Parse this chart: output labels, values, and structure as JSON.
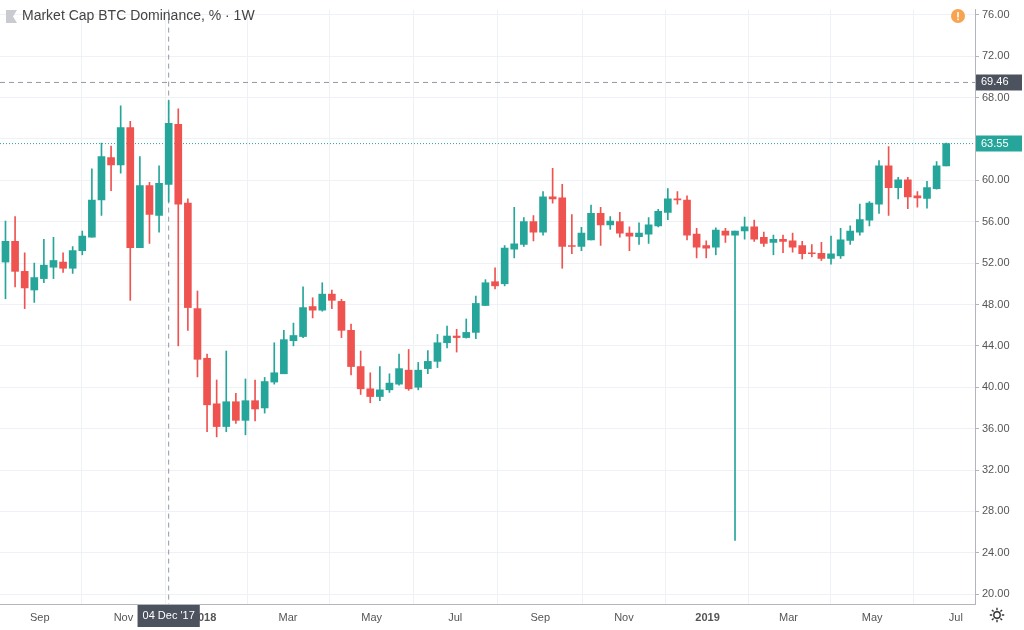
{
  "chart_data": {
    "type": "candlestick",
    "title": "Market Cap BTC Dominance, % · 1W",
    "x": [
      "2017-08-07",
      "2017-08-14",
      "2017-08-21",
      "2017-08-28",
      "2017-09-04",
      "2017-09-11",
      "2017-09-18",
      "2017-09-25",
      "2017-10-02",
      "2017-10-09",
      "2017-10-16",
      "2017-10-23",
      "2017-10-30",
      "2017-11-06",
      "2017-11-13",
      "2017-11-20",
      "2017-11-27",
      "2017-12-04",
      "2017-12-11",
      "2017-12-18",
      "2017-12-25",
      "2018-01-01",
      "2018-01-08",
      "2018-01-15",
      "2018-01-22",
      "2018-01-29",
      "2018-02-05",
      "2018-02-12",
      "2018-02-19",
      "2018-02-26",
      "2018-03-05",
      "2018-03-12",
      "2018-03-19",
      "2018-03-26",
      "2018-04-02",
      "2018-04-09",
      "2018-04-16",
      "2018-04-23",
      "2018-04-30",
      "2018-05-07",
      "2018-05-14",
      "2018-05-21",
      "2018-05-28",
      "2018-06-04",
      "2018-06-11",
      "2018-06-18",
      "2018-06-25",
      "2018-07-02",
      "2018-07-09",
      "2018-07-16",
      "2018-07-23",
      "2018-07-30",
      "2018-08-06",
      "2018-08-13",
      "2018-08-20",
      "2018-08-27",
      "2018-09-03",
      "2018-09-10",
      "2018-09-17",
      "2018-09-24",
      "2018-10-01",
      "2018-10-08",
      "2018-10-15",
      "2018-10-22",
      "2018-10-29",
      "2018-11-05",
      "2018-11-12",
      "2018-11-19",
      "2018-11-26",
      "2018-12-03",
      "2018-12-10",
      "2018-12-17",
      "2018-12-24",
      "2018-12-31",
      "2019-01-07",
      "2019-01-14",
      "2019-01-21",
      "2019-01-28",
      "2019-02-04",
      "2019-02-11",
      "2019-02-18",
      "2019-02-25",
      "2019-03-04",
      "2019-03-11",
      "2019-03-18",
      "2019-03-25",
      "2019-04-01",
      "2019-04-08",
      "2019-04-15",
      "2019-04-22",
      "2019-04-29",
      "2019-05-06",
      "2019-05-13",
      "2019-05-20",
      "2019-05-27",
      "2019-06-03",
      "2019-06-10",
      "2019-06-17",
      "2019-06-24"
    ],
    "ohlc": [
      [
        52.1,
        56.05,
        48.55,
        54.1
      ],
      [
        54.1,
        56.5,
        49.7,
        51.2
      ],
      [
        51.2,
        53.0,
        47.6,
        49.6
      ],
      [
        49.4,
        52.0,
        48.2,
        50.6
      ],
      [
        50.5,
        54.3,
        50.1,
        51.8
      ],
      [
        51.6,
        54.5,
        50.5,
        52.25
      ],
      [
        52.1,
        53.0,
        51.1,
        51.5
      ],
      [
        51.5,
        53.6,
        51.0,
        53.2
      ],
      [
        53.2,
        55.1,
        52.8,
        54.6
      ],
      [
        54.5,
        61.1,
        54.5,
        58.1
      ],
      [
        58.1,
        63.6,
        56.6,
        62.3
      ],
      [
        62.2,
        63.3,
        59.0,
        61.5
      ],
      [
        61.5,
        67.2,
        60.7,
        65.1
      ],
      [
        65.1,
        65.7,
        48.4,
        53.5
      ],
      [
        53.5,
        62.3,
        53.5,
        59.5
      ],
      [
        59.5,
        59.8,
        53.9,
        56.7
      ],
      [
        56.6,
        61.4,
        55.0,
        59.7
      ],
      [
        59.6,
        67.7,
        57.9,
        65.5
      ],
      [
        65.4,
        66.9,
        44.0,
        57.7
      ],
      [
        57.8,
        58.2,
        45.5,
        47.7
      ],
      [
        47.6,
        49.3,
        41.0,
        42.7
      ],
      [
        42.8,
        43.2,
        35.7,
        38.3
      ],
      [
        38.4,
        40.7,
        35.2,
        36.2
      ],
      [
        36.2,
        43.5,
        35.7,
        38.6
      ],
      [
        38.6,
        39.4,
        36.5,
        36.8
      ],
      [
        36.8,
        40.8,
        35.4,
        38.7
      ],
      [
        38.7,
        40.7,
        36.75,
        37.9
      ],
      [
        38.0,
        40.95,
        37.5,
        40.55
      ],
      [
        40.5,
        44.3,
        40.3,
        41.4
      ],
      [
        41.3,
        45.5,
        41.3,
        44.6
      ],
      [
        44.5,
        46.2,
        44.0,
        45.0
      ],
      [
        44.9,
        49.7,
        44.8,
        47.7
      ],
      [
        47.8,
        48.65,
        46.7,
        47.45
      ],
      [
        47.45,
        50.1,
        47.35,
        49.0
      ],
      [
        49.0,
        49.4,
        47.6,
        48.4
      ],
      [
        48.3,
        48.5,
        44.8,
        45.5
      ],
      [
        45.5,
        46.1,
        41.2,
        42.0
      ],
      [
        42.0,
        43.5,
        39.3,
        39.85
      ],
      [
        39.85,
        41.4,
        38.5,
        39.1
      ],
      [
        39.1,
        42.0,
        38.7,
        39.75
      ],
      [
        39.75,
        41.3,
        39.5,
        40.4
      ],
      [
        40.3,
        43.2,
        40.2,
        41.8
      ],
      [
        41.65,
        43.65,
        39.7,
        39.85
      ],
      [
        40.0,
        42.4,
        39.75,
        41.65
      ],
      [
        41.8,
        43.55,
        41.3,
        42.5
      ],
      [
        42.5,
        45.1,
        41.9,
        44.3
      ],
      [
        44.3,
        45.9,
        43.8,
        44.95
      ],
      [
        44.95,
        45.6,
        43.4,
        44.8
      ],
      [
        44.8,
        46.6,
        44.75,
        45.3
      ],
      [
        45.3,
        48.8,
        44.7,
        48.1
      ],
      [
        47.9,
        50.4,
        47.9,
        50.1
      ],
      [
        50.2,
        51.55,
        49.5,
        49.8
      ],
      [
        50.0,
        53.7,
        49.8,
        53.45
      ],
      [
        53.35,
        57.4,
        52.5,
        53.85
      ],
      [
        53.8,
        56.4,
        53.6,
        56.0
      ],
      [
        56.0,
        56.6,
        54.15,
        55.0
      ],
      [
        55.0,
        58.9,
        54.7,
        58.4
      ],
      [
        58.4,
        61.15,
        57.8,
        58.2
      ],
      [
        58.3,
        59.6,
        51.5,
        53.6
      ],
      [
        53.7,
        56.7,
        52.9,
        53.6
      ],
      [
        53.6,
        55.45,
        53.2,
        54.9
      ],
      [
        54.25,
        57.6,
        54.25,
        56.8
      ],
      [
        56.8,
        57.4,
        53.7,
        55.7
      ],
      [
        55.7,
        56.5,
        55.25,
        56.05
      ],
      [
        56.0,
        56.9,
        54.5,
        54.9
      ],
      [
        54.9,
        55.5,
        53.2,
        54.6
      ],
      [
        54.55,
        55.9,
        53.8,
        54.9
      ],
      [
        54.8,
        56.4,
        53.9,
        55.7
      ],
      [
        55.6,
        57.2,
        55.5,
        57.0
      ],
      [
        56.9,
        59.2,
        56.2,
        58.2
      ],
      [
        58.2,
        58.9,
        57.7,
        58.1
      ],
      [
        58.1,
        58.5,
        54.25,
        54.7
      ],
      [
        54.8,
        55.35,
        52.5,
        53.55
      ],
      [
        53.7,
        54.15,
        52.5,
        53.45
      ],
      [
        53.55,
        55.4,
        52.8,
        55.2
      ],
      [
        55.1,
        55.35,
        54.0,
        54.7
      ],
      [
        54.7,
        55.1,
        25.2,
        55.1
      ],
      [
        55.1,
        56.45,
        54.3,
        55.5
      ],
      [
        55.5,
        56.15,
        54.1,
        54.3
      ],
      [
        54.5,
        55.0,
        53.6,
        53.9
      ],
      [
        54.0,
        54.7,
        52.8,
        54.3
      ],
      [
        54.3,
        54.7,
        53.0,
        54.1
      ],
      [
        54.15,
        54.9,
        53.05,
        53.55
      ],
      [
        53.7,
        54.1,
        52.4,
        52.9
      ],
      [
        53.0,
        53.8,
        52.6,
        52.9
      ],
      [
        52.95,
        54.0,
        52.25,
        52.45
      ],
      [
        52.45,
        54.6,
        51.9,
        52.9
      ],
      [
        52.7,
        55.35,
        52.45,
        54.25
      ],
      [
        54.2,
        55.6,
        53.8,
        55.1
      ],
      [
        55.0,
        57.7,
        54.7,
        56.2
      ],
      [
        56.15,
        57.95,
        55.6,
        57.8
      ],
      [
        57.7,
        61.9,
        56.8,
        61.4
      ],
      [
        61.4,
        63.25,
        56.6,
        59.3
      ],
      [
        59.3,
        60.3,
        58.2,
        60.05
      ],
      [
        60.05,
        60.3,
        57.25,
        58.4
      ],
      [
        58.5,
        58.9,
        57.4,
        58.3
      ],
      [
        58.25,
        59.9,
        57.3,
        59.3
      ],
      [
        59.2,
        61.8,
        59.15,
        61.4
      ],
      [
        61.4,
        63.6,
        61.4,
        63.55
      ]
    ],
    "colors": [
      "#26a69a",
      "#ef5350",
      "#ef5350",
      "#26a69a",
      "#26a69a",
      "#26a69a",
      "#ef5350",
      "#26a69a",
      "#26a69a",
      "#26a69a",
      "#26a69a",
      "#ef5350",
      "#26a69a",
      "#ef5350",
      "#26a69a",
      "#ef5350",
      "#26a69a",
      "#26a69a",
      "#ef5350",
      "#ef5350",
      "#ef5350",
      "#ef5350",
      "#ef5350",
      "#26a69a",
      "#ef5350",
      "#26a69a",
      "#ef5350",
      "#26a69a",
      "#26a69a",
      "#26a69a",
      "#26a69a",
      "#26a69a",
      "#ef5350",
      "#26a69a",
      "#ef5350",
      "#ef5350",
      "#ef5350",
      "#ef5350",
      "#ef5350",
      "#26a69a",
      "#26a69a",
      "#26a69a",
      "#ef5350",
      "#26a69a",
      "#26a69a",
      "#26a69a",
      "#26a69a",
      "#ef5350",
      "#26a69a",
      "#26a69a",
      "#26a69a",
      "#ef5350",
      "#26a69a",
      "#26a69a",
      "#26a69a",
      "#ef5350",
      "#26a69a",
      "#ef5350",
      "#ef5350",
      "#ef5350",
      "#26a69a",
      "#26a69a",
      "#ef5350",
      "#26a69a",
      "#ef5350",
      "#ef5350",
      "#26a69a",
      "#26a69a",
      "#26a69a",
      "#26a69a",
      "#ef5350",
      "#ef5350",
      "#ef5350",
      "#ef5350",
      "#26a69a",
      "#ef5350",
      "#26a69a",
      "#26a69a",
      "#ef5350",
      "#ef5350",
      "#26a69a",
      "#ef5350",
      "#ef5350",
      "#ef5350",
      "#ef5350",
      "#ef5350",
      "#26a69a",
      "#26a69a",
      "#26a69a",
      "#26a69a",
      "#26a69a",
      "#26a69a",
      "#ef5350",
      "#26a69a",
      "#ef5350",
      "#ef5350",
      "#26a69a",
      "#26a69a",
      "#26a69a"
    ],
    "xlim": [
      "2017-08-03",
      "2019-07-15"
    ],
    "xticks": [
      {
        "value": "2017-09-01",
        "label": "Sep"
      },
      {
        "value": "2017-11-01",
        "label": "Nov"
      },
      {
        "value": "2018-01-01",
        "label": "018"
      },
      {
        "value": "2018-03-01",
        "label": "Mar"
      },
      {
        "value": "2018-05-01",
        "label": "May"
      },
      {
        "value": "2018-07-01",
        "label": "Jul"
      },
      {
        "value": "2018-09-01",
        "label": "Sep"
      },
      {
        "value": "2018-11-01",
        "label": "Nov"
      },
      {
        "value": "2019-01-01",
        "label": "2019"
      },
      {
        "value": "2019-03-01",
        "label": "Mar"
      },
      {
        "value": "2019-05-01",
        "label": "May"
      },
      {
        "value": "2019-07-01",
        "label": "Jul"
      }
    ],
    "ylim": [
      19.05,
      76.5
    ],
    "yticks": [
      {
        "value": 20,
        "label": "20.00"
      },
      {
        "value": 24,
        "label": "24.00"
      },
      {
        "value": 28,
        "label": "28.00"
      },
      {
        "value": 32,
        "label": "32.00"
      },
      {
        "value": 36,
        "label": "36.00"
      },
      {
        "value": 40,
        "label": "40.00"
      },
      {
        "value": 44,
        "label": "44.00"
      },
      {
        "value": 48,
        "label": "48.00"
      },
      {
        "value": 52,
        "label": "52.00"
      },
      {
        "value": 56,
        "label": "56.00"
      },
      {
        "value": 60,
        "label": "60.00"
      },
      {
        "value": 64,
        "label": null
      },
      {
        "value": 68,
        "label": "68.00"
      },
      {
        "value": 72,
        "label": "72.00"
      },
      {
        "value": 76,
        "label": "76.00"
      }
    ],
    "ref_lines": [
      {
        "axis": "y",
        "value": 63.55,
        "label": "63.55",
        "color": "#26a69a",
        "line_style": "dotted"
      },
      {
        "axis": "y",
        "value": 69.46,
        "label": "69.46",
        "color": "#9598a1",
        "line_style": "dashed"
      },
      {
        "axis": "x",
        "value": "2017-12-04",
        "label": "04 Dec '17",
        "color": "#9598a1",
        "line_style": "dashed"
      }
    ],
    "grid": true,
    "legend": false
  }
}
